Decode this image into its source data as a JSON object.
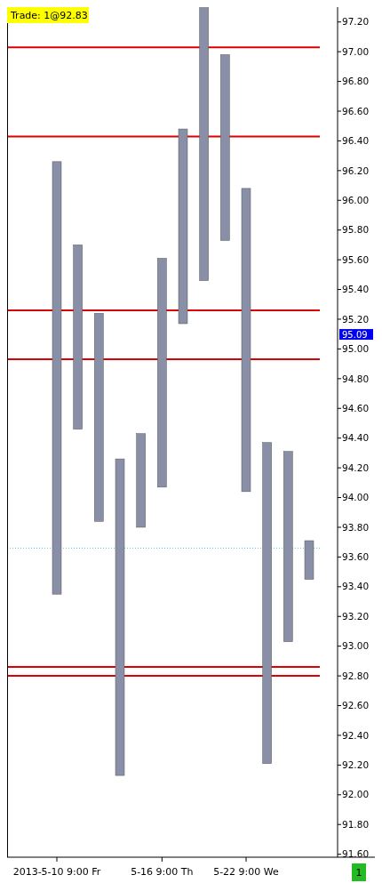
{
  "chart_data": {
    "type": "bar",
    "categories": [
      "2013-5-10  9:00 Fr",
      null,
      null,
      null,
      null,
      "5-16  9:00 Th",
      null,
      null,
      null,
      "5-22  9:00 We",
      null,
      null,
      null
    ],
    "base": [
      93.35,
      94.46,
      93.84,
      92.13,
      93.8,
      94.07,
      95.17,
      95.46,
      95.73,
      94.04,
      92.21,
      93.03,
      93.45
    ],
    "values": [
      2.91,
      1.24,
      1.4,
      2.13,
      0.63,
      1.54,
      1.31,
      1.88,
      1.25,
      2.04,
      2.16,
      1.28,
      0.26
    ],
    "color": "#8a8fa8",
    "ylim": [
      91.58,
      97.3
    ],
    "yticks": [
      {
        "value": 91.6,
        "label": "91.60"
      },
      {
        "value": 91.8,
        "label": "91.80"
      },
      {
        "value": 92,
        "label": "92.00"
      },
      {
        "value": 92.2,
        "label": "92.20"
      },
      {
        "value": 92.4,
        "label": "92.40"
      },
      {
        "value": 92.6,
        "label": "92.60"
      },
      {
        "value": 92.8,
        "label": "92.80"
      },
      {
        "value": 93,
        "label": "93.00"
      },
      {
        "value": 93.2,
        "label": "93.20"
      },
      {
        "value": 93.4,
        "label": "93.40"
      },
      {
        "value": 93.6,
        "label": "93.60"
      },
      {
        "value": 93.8,
        "label": "93.80"
      },
      {
        "value": 94,
        "label": "94.00"
      },
      {
        "value": 94.2,
        "label": "94.20"
      },
      {
        "value": 94.4,
        "label": "94.40"
      },
      {
        "value": 94.6,
        "label": "94.60"
      },
      {
        "value": 94.8,
        "label": "94.80"
      },
      {
        "value": 95,
        "label": "95.00"
      },
      {
        "value": 95.2,
        "label": "95.20"
      },
      {
        "value": 95.4,
        "label": "95.40"
      },
      {
        "value": 95.6,
        "label": "95.60"
      },
      {
        "value": 95.8,
        "label": "95.80"
      },
      {
        "value": 96,
        "label": "96.00"
      },
      {
        "value": 96.2,
        "label": "96.20"
      },
      {
        "value": 96.4,
        "label": "96.40"
      },
      {
        "value": 96.6,
        "label": "96.60"
      },
      {
        "value": 96.8,
        "label": "96.80"
      },
      {
        "value": 97,
        "label": "97.00"
      },
      {
        "value": 97.2,
        "label": "97.20"
      }
    ],
    "ref_lines": [
      {
        "axis": "y",
        "value": 97.03,
        "color": "#dd0000"
      },
      {
        "axis": "y",
        "value": 96.43,
        "color": "#dd0000"
      },
      {
        "axis": "y",
        "value": 95.26,
        "color": "#dd0000"
      },
      {
        "axis": "y",
        "value": 94.93,
        "color": "#dd0000"
      },
      {
        "axis": "y",
        "value": 92.86,
        "color": "#dd0000"
      },
      {
        "axis": "y",
        "value": 92.8,
        "color": "#dd0000"
      },
      {
        "axis": "y",
        "value": 93.66,
        "color": "#5bc8d0",
        "line_style": "dotted"
      }
    ],
    "annotations": [
      "Trade: 1@92.83",
      "95.09",
      "1"
    ],
    "grid": false
  }
}
